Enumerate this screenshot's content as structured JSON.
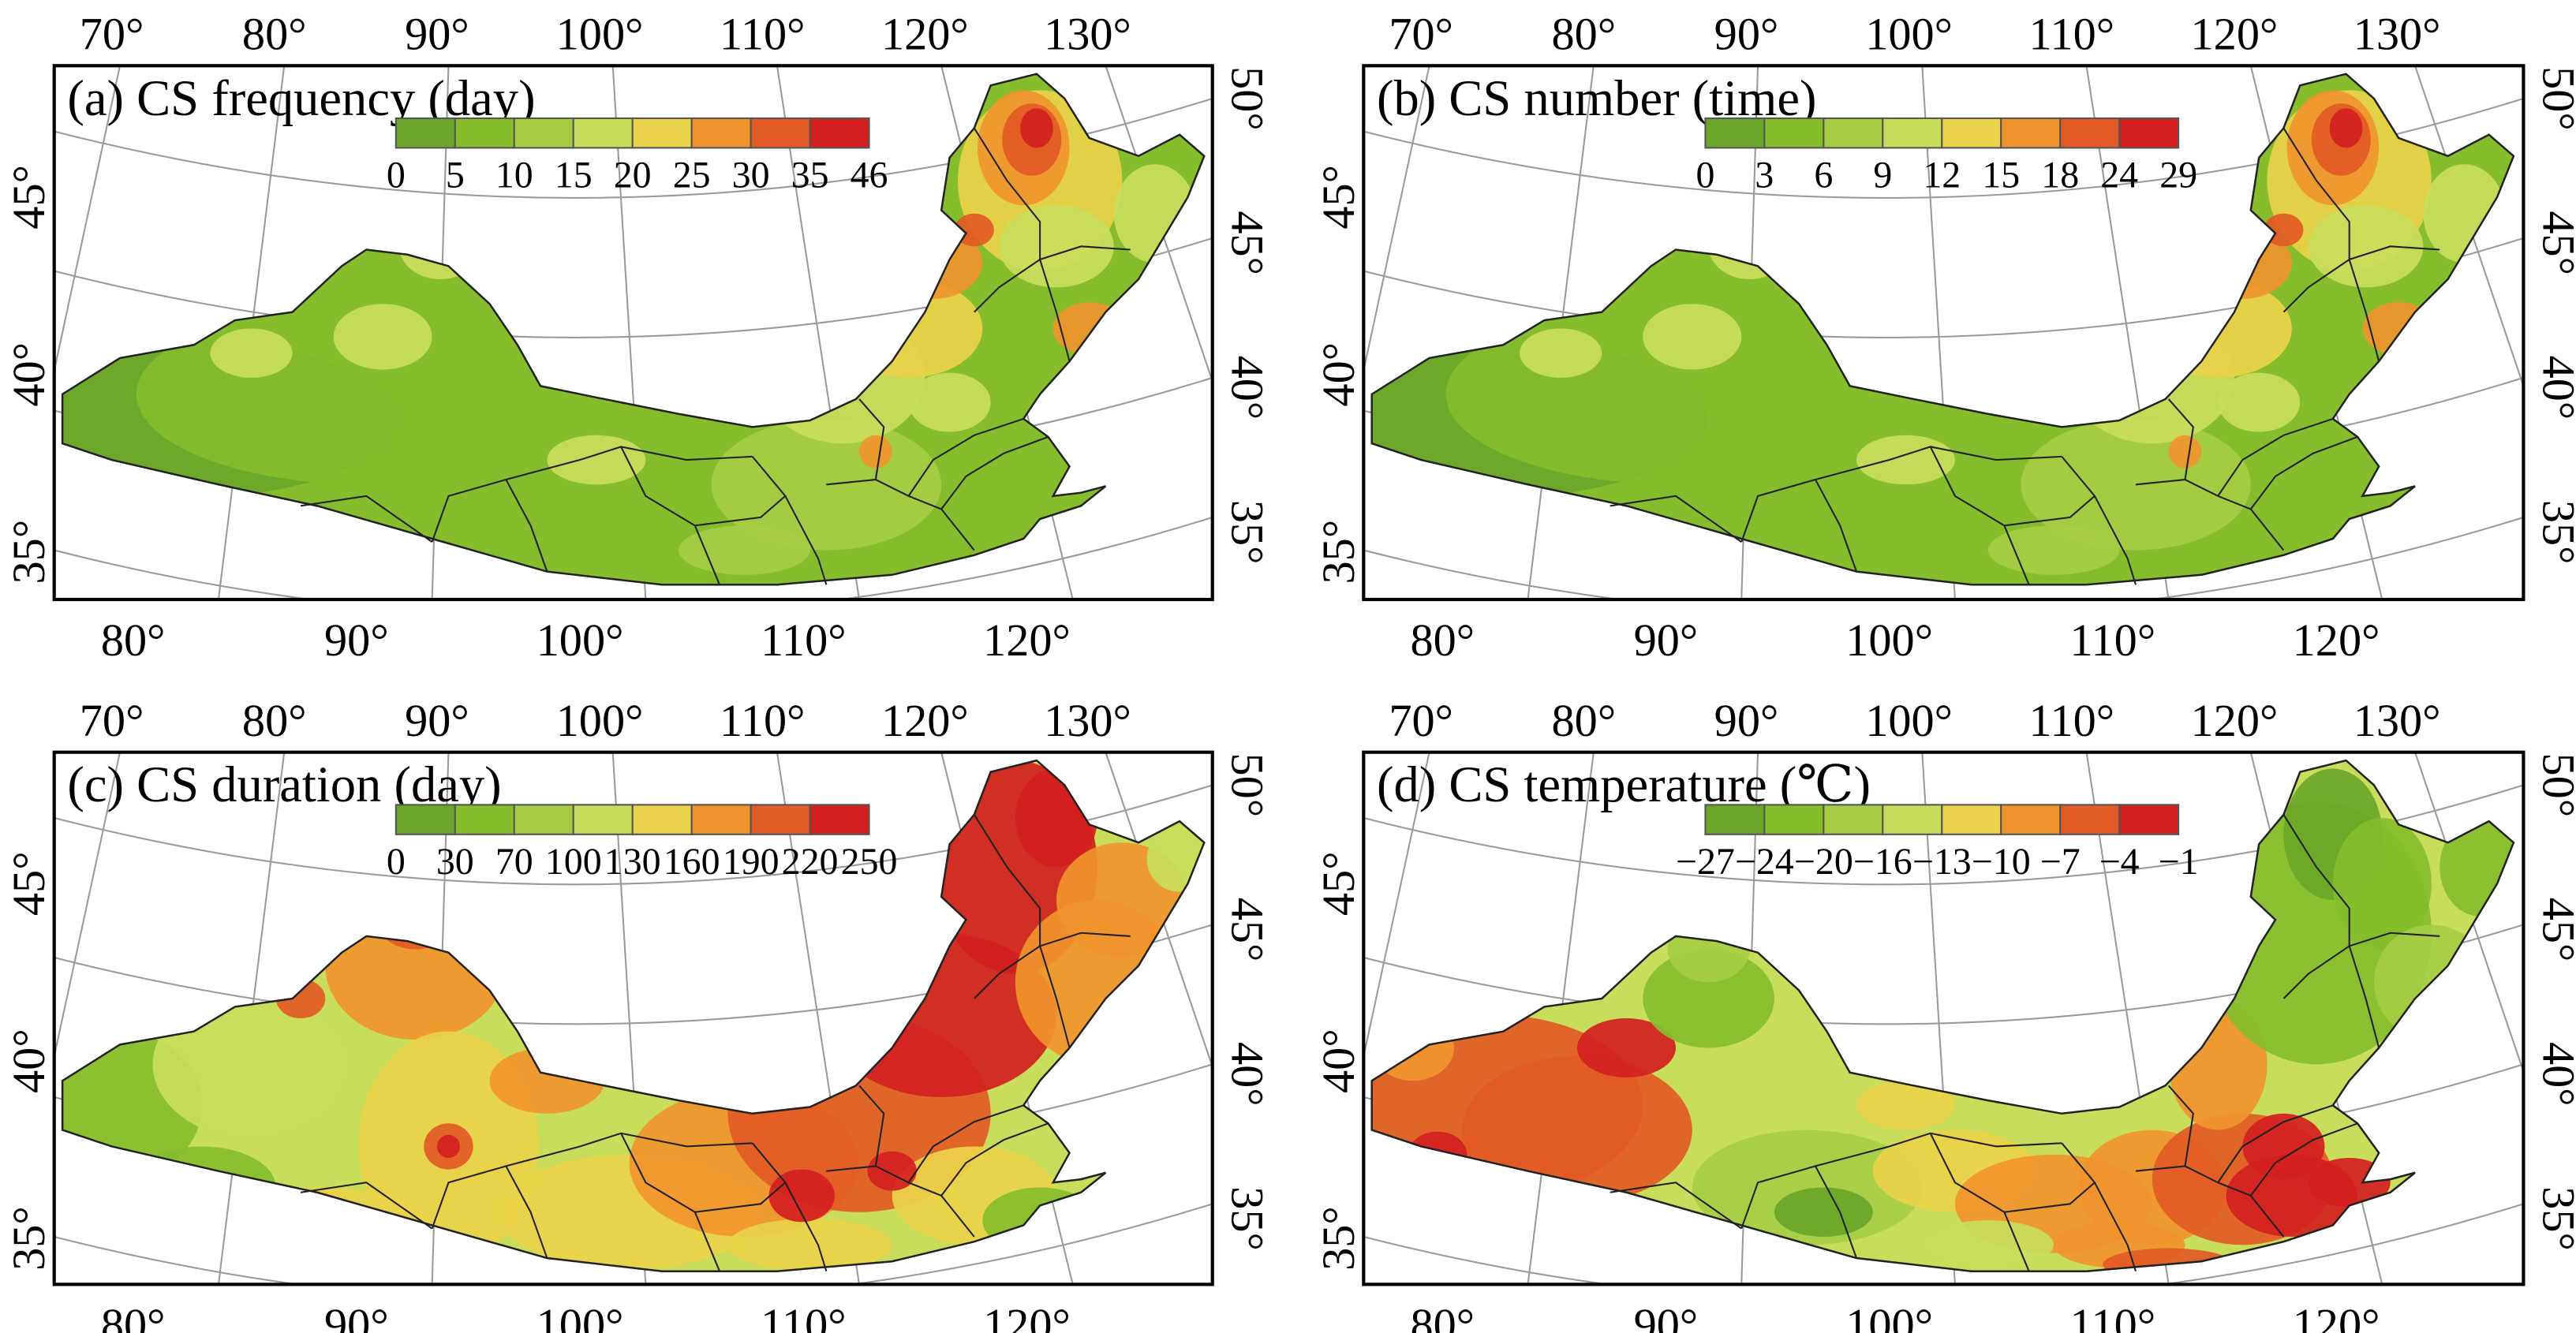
{
  "figure": {
    "panels": [
      {
        "id": "a",
        "title": "(a) CS frequency (day)",
        "legend_ticks": [
          "0",
          "5",
          "10",
          "15",
          "20",
          "25",
          "30",
          "35",
          "46"
        ],
        "field": "north_east_hot"
      },
      {
        "id": "b",
        "title": "(b) CS number (time)",
        "legend_ticks": [
          "0",
          "3",
          "6",
          "9",
          "12",
          "15",
          "18",
          "24",
          "29"
        ],
        "field": "north_east_hot"
      },
      {
        "id": "c",
        "title": "(c) CS duration (day)",
        "legend_ticks": [
          "0",
          "30",
          "70",
          "100",
          "130",
          "160",
          "190",
          "220",
          "250"
        ],
        "field": "east_hot_strong"
      },
      {
        "id": "d",
        "title": "(d) CS temperature (℃)",
        "legend_ticks": [
          "−27",
          "−24",
          "−20",
          "−16",
          "−13",
          "−10",
          "−7",
          "−4",
          "−1"
        ],
        "field": "west_south_hot"
      }
    ],
    "colorbar_colors": [
      "#6aa629",
      "#86bd2d",
      "#a6cd45",
      "#c9dd5c",
      "#ead34a",
      "#f0952e",
      "#e25a25",
      "#d31f1f"
    ],
    "top_longitude_labels": [
      "70°",
      "80°",
      "90°",
      "100°",
      "110°",
      "120°",
      "130°"
    ],
    "bottom_longitude_labels": [
      "80°",
      "90°",
      "100°",
      "110°",
      "120°"
    ],
    "left_latitude_labels": [
      "45°",
      "40°",
      "35°"
    ],
    "right_latitude_labels": [
      "50°",
      "45°",
      "40°",
      "35°"
    ]
  }
}
